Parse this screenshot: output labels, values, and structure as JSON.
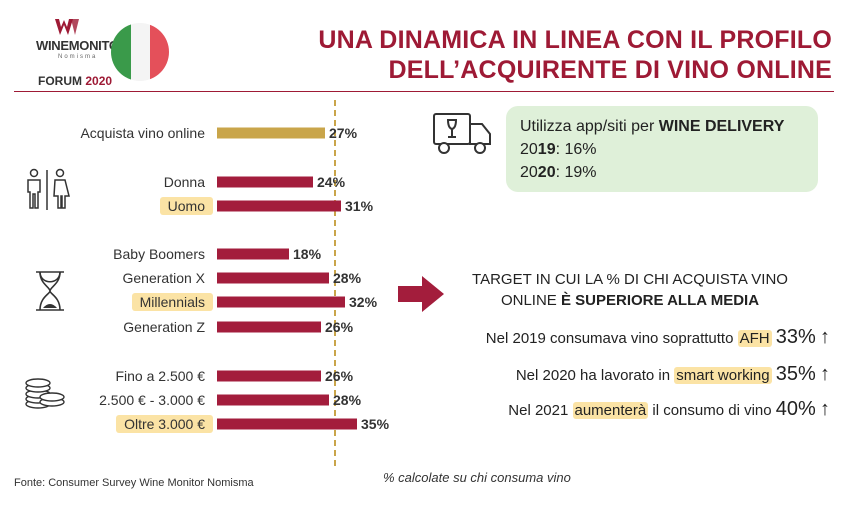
{
  "header": {
    "logo": {
      "name": "WINEMONITOR",
      "sub": "Nomisma",
      "forum": "FORUM",
      "year": "2020"
    },
    "title_line1": "UNA DINAMICA IN LINEA CON IL PROFILO",
    "title_line2": "DELL’ACQUIRENTE DI VINO ONLINE"
  },
  "chart_data": {
    "type": "bar",
    "orientation": "horizontal",
    "categories": [
      "Acquista vino online",
      "Donna",
      "Uomo",
      "Baby Boomers",
      "Generation X",
      "Millennials",
      "Generation Z",
      "Fino a 2.500 €",
      "2.500 € - 3.000 €",
      "Oltre 3.000 €"
    ],
    "values": [
      27,
      24,
      31,
      18,
      28,
      32,
      26,
      26,
      28,
      35
    ],
    "value_labels": [
      "27%",
      "24%",
      "31%",
      "18%",
      "28%",
      "32%",
      "26%",
      "26%",
      "28%",
      "35%"
    ],
    "highlighted": [
      "Uomo",
      "Millennials",
      "Oltre 3.000 €"
    ],
    "reference_line": {
      "value": 27,
      "style": "dashed"
    },
    "colors": {
      "average": "#c9a54a",
      "bars": "#a31d3c",
      "highlight": "#fbe3a5",
      "reference": "#c9a54a"
    },
    "grid": false
  },
  "icons": {
    "gender": "gender-icon",
    "generation": "hourglass-icon",
    "income": "coins-icon",
    "delivery": "delivery-truck-icon",
    "arrow": "right-arrow-icon"
  },
  "delivery": {
    "prefix": "Utilizza app/siti per ",
    "bold": "WINE DELIVERY",
    "year1_a": "20",
    "year1_b": "19",
    "year1_value": ": 16%",
    "year2_a": "20",
    "year2_b": "20",
    "year2_value": ": 19%"
  },
  "target": {
    "line1": "TARGET IN CUI LA % DI CHI ACQUISTA VINO",
    "line2_a": "ONLINE ",
    "line2_b": "È SUPERIORE ALLA MEDIA"
  },
  "stats": [
    {
      "pre": "Nel 2019 consumava vino soprattutto ",
      "hl": "AFH",
      "post": "",
      "value": "33%",
      "arrow": "↑"
    },
    {
      "pre": "Nel 2020 ha lavorato in ",
      "hl": "smart working",
      "post": "",
      "value": "35%",
      "arrow": "↑"
    },
    {
      "pre": "Nel 2021 ",
      "hl": "aumenterà",
      "post": " il consumo di vino",
      "value": "40%",
      "arrow": "↑"
    }
  ],
  "source": "Fonte: Consumer Survey Wine Monitor Nomisma",
  "note": "% calcolate su chi consuma vino"
}
